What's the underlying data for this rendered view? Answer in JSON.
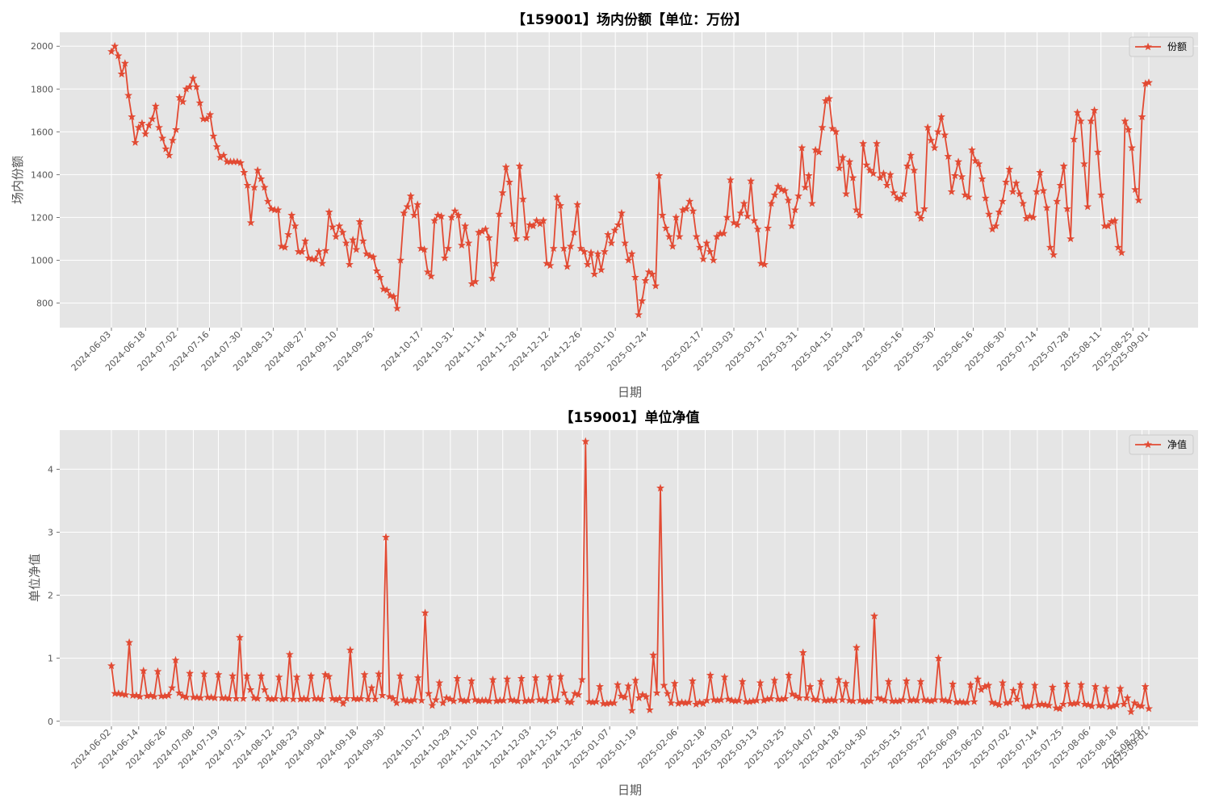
{
  "chart_data": [
    {
      "type": "line",
      "title": "【159001】场内份额【单位：万份】",
      "xlabel": "日期",
      "ylabel": "场内份额",
      "ylim": [
        685,
        2065
      ],
      "yticks": [
        800,
        1000,
        1200,
        1400,
        1600,
        1800,
        2000
      ],
      "x_range": [
        "2024-06-03",
        "2025-09-01"
      ],
      "xticks": [
        "2024-06-03",
        "2024-06-18",
        "2024-07-02",
        "2024-07-16",
        "2024-07-30",
        "2024-08-13",
        "2024-08-27",
        "2024-09-10",
        "2024-09-26",
        "2024-10-17",
        "2024-10-31",
        "2024-11-14",
        "2024-11-28",
        "2024-12-12",
        "2024-12-26",
        "2025-01-10",
        "2025-01-24",
        "2025-02-17",
        "2025-03-03",
        "2025-03-17",
        "2025-03-31",
        "2025-04-15",
        "2025-04-29",
        "2025-05-16",
        "2025-05-30",
        "2025-06-16",
        "2025-06-30",
        "2025-07-14",
        "2025-07-28",
        "2025-08-11",
        "2025-08-25",
        "2025-09-01"
      ],
      "grid": true,
      "legend_position": "top-right",
      "series": [
        {
          "name": "份额",
          "color": "#e24a33",
          "marker": "star",
          "values": [
            1975,
            2000,
            1955,
            1870,
            1920,
            1770,
            1670,
            1550,
            1620,
            1640,
            1590,
            1630,
            1660,
            1720,
            1620,
            1570,
            1520,
            1490,
            1560,
            1610,
            1760,
            1740,
            1800,
            1810,
            1850,
            1810,
            1735,
            1660,
            1660,
            1680,
            1580,
            1530,
            1480,
            1490,
            1460,
            1460,
            1460,
            1460,
            1455,
            1410,
            1350,
            1175,
            1340,
            1420,
            1380,
            1340,
            1275,
            1240,
            1235,
            1235,
            1065,
            1060,
            1120,
            1210,
            1160,
            1040,
            1040,
            1090,
            1010,
            1005,
            1005,
            1040,
            985,
            1045,
            1225,
            1155,
            1110,
            1160,
            1130,
            1080,
            980,
            1095,
            1050,
            1180,
            1090,
            1030,
            1020,
            1015,
            950,
            920,
            865,
            860,
            835,
            830,
            775,
            1000,
            1220,
            1250,
            1300,
            1210,
            1260,
            1055,
            1050,
            945,
            925,
            1185,
            1210,
            1205,
            1010,
            1055,
            1200,
            1230,
            1210,
            1070,
            1160,
            1080,
            890,
            900,
            1130,
            1135,
            1145,
            1105,
            915,
            985,
            1215,
            1315,
            1435,
            1365,
            1170,
            1100,
            1440,
            1285,
            1105,
            1165,
            1160,
            1185,
            1170,
            1185,
            985,
            975,
            1055,
            1295,
            1255,
            1055,
            970,
            1065,
            1130,
            1260,
            1055,
            1040,
            980,
            1035,
            935,
            1030,
            955,
            1040,
            1120,
            1080,
            1140,
            1165,
            1220,
            1080,
            1000,
            1030,
            920,
            745,
            810,
            905,
            945,
            935,
            880,
            1395,
            1210,
            1150,
            1110,
            1065,
            1200,
            1110,
            1235,
            1240,
            1275,
            1230,
            1110,
            1060,
            1005,
            1080,
            1040,
            1000,
            1110,
            1125,
            1125,
            1200,
            1375,
            1175,
            1165,
            1220,
            1265,
            1205,
            1370,
            1185,
            1145,
            985,
            980,
            1150,
            1265,
            1305,
            1345,
            1330,
            1325,
            1280,
            1160,
            1235,
            1300,
            1525,
            1340,
            1395,
            1265,
            1515,
            1505,
            1620,
            1745,
            1755,
            1615,
            1600,
            1430,
            1480,
            1310,
            1460,
            1385,
            1235,
            1210,
            1545,
            1445,
            1420,
            1405,
            1545,
            1385,
            1405,
            1350,
            1400,
            1315,
            1290,
            1285,
            1310,
            1440,
            1490,
            1420,
            1220,
            1195,
            1240,
            1620,
            1560,
            1525,
            1600,
            1670,
            1585,
            1485,
            1320,
            1395,
            1460,
            1390,
            1305,
            1295,
            1515,
            1465,
            1450,
            1380,
            1290,
            1215,
            1145,
            1160,
            1225,
            1275,
            1365,
            1425,
            1320,
            1360,
            1310,
            1265,
            1195,
            1205,
            1200,
            1320,
            1410,
            1325,
            1245,
            1060,
            1025,
            1275,
            1350,
            1440,
            1240,
            1100,
            1565,
            1690,
            1650,
            1450,
            1250,
            1650,
            1700,
            1505,
            1305,
            1160,
            1160,
            1180,
            1185,
            1060,
            1035,
            1650,
            1610,
            1525,
            1330,
            1280,
            1670,
            1825,
            1830
          ]
        }
      ]
    },
    {
      "type": "line",
      "title": "【159001】单位净值",
      "xlabel": "日期",
      "ylabel": "单位净值",
      "ylim": [
        -0.08,
        4.62
      ],
      "yticks": [
        0,
        1,
        2,
        3,
        4
      ],
      "x_range": [
        "2024-06-02",
        "2025-09-01"
      ],
      "xticks": [
        "2024-06-02",
        "2024-06-14",
        "2024-06-26",
        "2024-07-08",
        "2024-07-19",
        "2024-07-31",
        "2024-08-12",
        "2024-08-23",
        "2024-09-04",
        "2024-09-18",
        "2024-09-30",
        "2024-10-17",
        "2024-10-29",
        "2024-11-10",
        "2024-11-21",
        "2024-12-03",
        "2024-12-15",
        "2024-12-26",
        "2025-01-07",
        "2025-01-19",
        "2025-02-06",
        "2025-02-18",
        "2025-03-02",
        "2025-03-13",
        "2025-03-25",
        "2025-04-07",
        "2025-04-18",
        "2025-04-30",
        "2025-05-15",
        "2025-05-27",
        "2025-06-09",
        "2025-06-20",
        "2025-07-02",
        "2025-07-14",
        "2025-07-25",
        "2025-08-06",
        "2025-08-18",
        "2025-08-29",
        "2025-09-01"
      ],
      "grid": true,
      "legend_position": "top-right",
      "series": [
        {
          "name": "净值",
          "color": "#e24a33",
          "marker": "star",
          "values": [
            0.88,
            0.44,
            0.44,
            0.43,
            0.42,
            1.25,
            0.41,
            0.41,
            0.39,
            0.8,
            0.4,
            0.41,
            0.39,
            0.79,
            0.4,
            0.4,
            0.41,
            0.53,
            0.97,
            0.45,
            0.4,
            0.38,
            0.76,
            0.38,
            0.38,
            0.37,
            0.75,
            0.38,
            0.38,
            0.37,
            0.74,
            0.37,
            0.37,
            0.36,
            0.72,
            0.36,
            1.33,
            0.36,
            0.72,
            0.5,
            0.37,
            0.36,
            0.72,
            0.5,
            0.36,
            0.35,
            0.36,
            0.7,
            0.35,
            0.36,
            1.06,
            0.35,
            0.7,
            0.35,
            0.36,
            0.35,
            0.72,
            0.36,
            0.36,
            0.35,
            0.74,
            0.71,
            0.36,
            0.34,
            0.36,
            0.28,
            0.36,
            1.13,
            0.36,
            0.35,
            0.36,
            0.74,
            0.35,
            0.53,
            0.35,
            0.75,
            0.41,
            2.92,
            0.39,
            0.36,
            0.29,
            0.72,
            0.34,
            0.33,
            0.32,
            0.34,
            0.69,
            0.33,
            1.72,
            0.44,
            0.25,
            0.34,
            0.61,
            0.29,
            0.37,
            0.35,
            0.32,
            0.68,
            0.34,
            0.32,
            0.33,
            0.64,
            0.34,
            0.32,
            0.33,
            0.33,
            0.32,
            0.66,
            0.32,
            0.33,
            0.33,
            0.67,
            0.34,
            0.33,
            0.32,
            0.68,
            0.32,
            0.33,
            0.33,
            0.69,
            0.34,
            0.34,
            0.32,
            0.7,
            0.33,
            0.34,
            0.71,
            0.45,
            0.31,
            0.3,
            0.44,
            0.42,
            0.66,
            4.44,
            0.31,
            0.3,
            0.31,
            0.55,
            0.28,
            0.28,
            0.29,
            0.29,
            0.58,
            0.4,
            0.38,
            0.56,
            0.17,
            0.65,
            0.37,
            0.42,
            0.39,
            0.18,
            1.05,
            0.45,
            3.7,
            0.57,
            0.44,
            0.29,
            0.6,
            0.28,
            0.3,
            0.29,
            0.3,
            0.64,
            0.27,
            0.3,
            0.28,
            0.33,
            0.73,
            0.34,
            0.33,
            0.34,
            0.7,
            0.35,
            0.33,
            0.32,
            0.33,
            0.63,
            0.31,
            0.31,
            0.32,
            0.33,
            0.61,
            0.33,
            0.35,
            0.36,
            0.65,
            0.35,
            0.35,
            0.36,
            0.73,
            0.43,
            0.4,
            0.37,
            1.09,
            0.37,
            0.55,
            0.35,
            0.34,
            0.63,
            0.33,
            0.33,
            0.34,
            0.33,
            0.66,
            0.34,
            0.6,
            0.33,
            0.32,
            1.17,
            0.33,
            0.31,
            0.32,
            0.32,
            1.67,
            0.37,
            0.35,
            0.33,
            0.63,
            0.32,
            0.32,
            0.32,
            0.34,
            0.64,
            0.33,
            0.34,
            0.33,
            0.63,
            0.34,
            0.33,
            0.32,
            0.34,
            1.0,
            0.34,
            0.33,
            0.32,
            0.59,
            0.3,
            0.31,
            0.3,
            0.3,
            0.58,
            0.31,
            0.67,
            0.5,
            0.55,
            0.57,
            0.3,
            0.28,
            0.26,
            0.61,
            0.29,
            0.3,
            0.49,
            0.35,
            0.58,
            0.24,
            0.23,
            0.25,
            0.57,
            0.26,
            0.27,
            0.26,
            0.25,
            0.54,
            0.21,
            0.2,
            0.27,
            0.59,
            0.28,
            0.28,
            0.29,
            0.58,
            0.27,
            0.26,
            0.24,
            0.55,
            0.25,
            0.25,
            0.52,
            0.23,
            0.24,
            0.26,
            0.52,
            0.27,
            0.37,
            0.15,
            0.29,
            0.25,
            0.24,
            0.55,
            0.2
          ]
        }
      ]
    }
  ]
}
